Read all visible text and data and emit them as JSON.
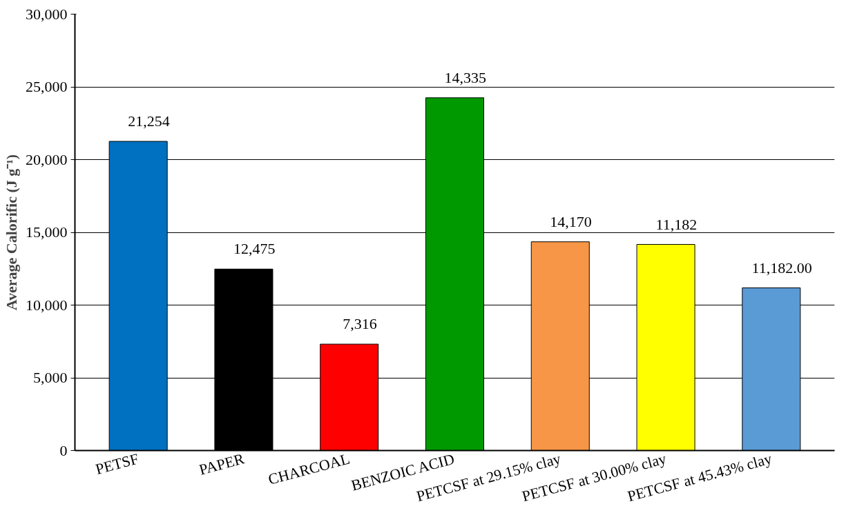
{
  "chart_data": {
    "type": "bar",
    "ylabel": "Average Calorific (J g⁻¹)",
    "categories": [
      "PETSF",
      "PAPER",
      "CHARCOAL",
      "BENZOIC ACID",
      "PETCSF at 29.15% clay",
      "PETCSF at 30.00% clay",
      "PETCSF at 45.43% clay"
    ],
    "values": [
      21254,
      12475,
      7316,
      24250,
      14350,
      14170,
      11182
    ],
    "value_labels": [
      "21,254",
      "12,475",
      "7,316",
      null,
      null,
      null,
      "11,182.00"
    ],
    "annotations": [
      {
        "text": "14,335",
        "x": "BENZOIC ACID",
        "y": 24250
      },
      {
        "text": "14,170",
        "x": "PETCSF at 29.15% clay",
        "y": 14350
      },
      {
        "text": "11,182",
        "x": "PETCSF at 30.00% clay",
        "y": 14170
      }
    ],
    "colors": [
      "#0070c0",
      "#000000",
      "#ff0000",
      "#009900",
      "#f79646",
      "#ffff00",
      "#5b9bd5"
    ],
    "ylim": [
      0,
      30000
    ],
    "yticks": [
      {
        "value": 0,
        "label": "0"
      },
      {
        "value": 5000,
        "label": "5,000"
      },
      {
        "value": 10000,
        "label": "10,000"
      },
      {
        "value": 15000,
        "label": "15,000"
      },
      {
        "value": 20000,
        "label": "20,000"
      },
      {
        "value": 25000,
        "label": "25,000"
      },
      {
        "value": 30000,
        "label": "30,000"
      }
    ],
    "grid": "y"
  }
}
